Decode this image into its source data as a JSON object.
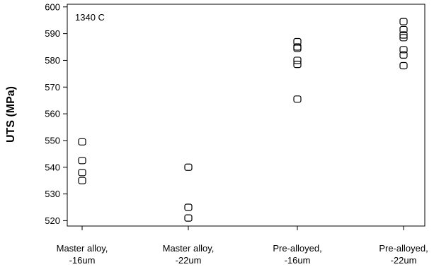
{
  "chart_data": {
    "type": "scatter",
    "title": "",
    "annotation": "1340 C",
    "ylabel": "UTS (MPa)",
    "xlabel": "",
    "ylim": [
      518,
      601
    ],
    "yticks": [
      520,
      530,
      540,
      550,
      560,
      570,
      580,
      590,
      600
    ],
    "grid": false,
    "marker": "rounded-square",
    "categories": [
      [
        "Master alloy,",
        "-16um"
      ],
      [
        "Master alloy,",
        "-22um"
      ],
      [
        "Pre-alloyed,",
        "-16um"
      ],
      [
        "Pre-alloyed,",
        "-22um"
      ]
    ],
    "series": [
      {
        "values": [
          [
            549.5,
            542.5,
            538.0,
            535.0
          ],
          [
            540.0,
            525.0,
            521.0
          ],
          [
            587.0,
            585.0,
            584.5,
            580.0,
            578.5,
            565.5
          ],
          [
            594.5,
            591.5,
            589.5,
            588.5,
            584.0,
            582.0,
            578.0
          ]
        ]
      }
    ]
  }
}
